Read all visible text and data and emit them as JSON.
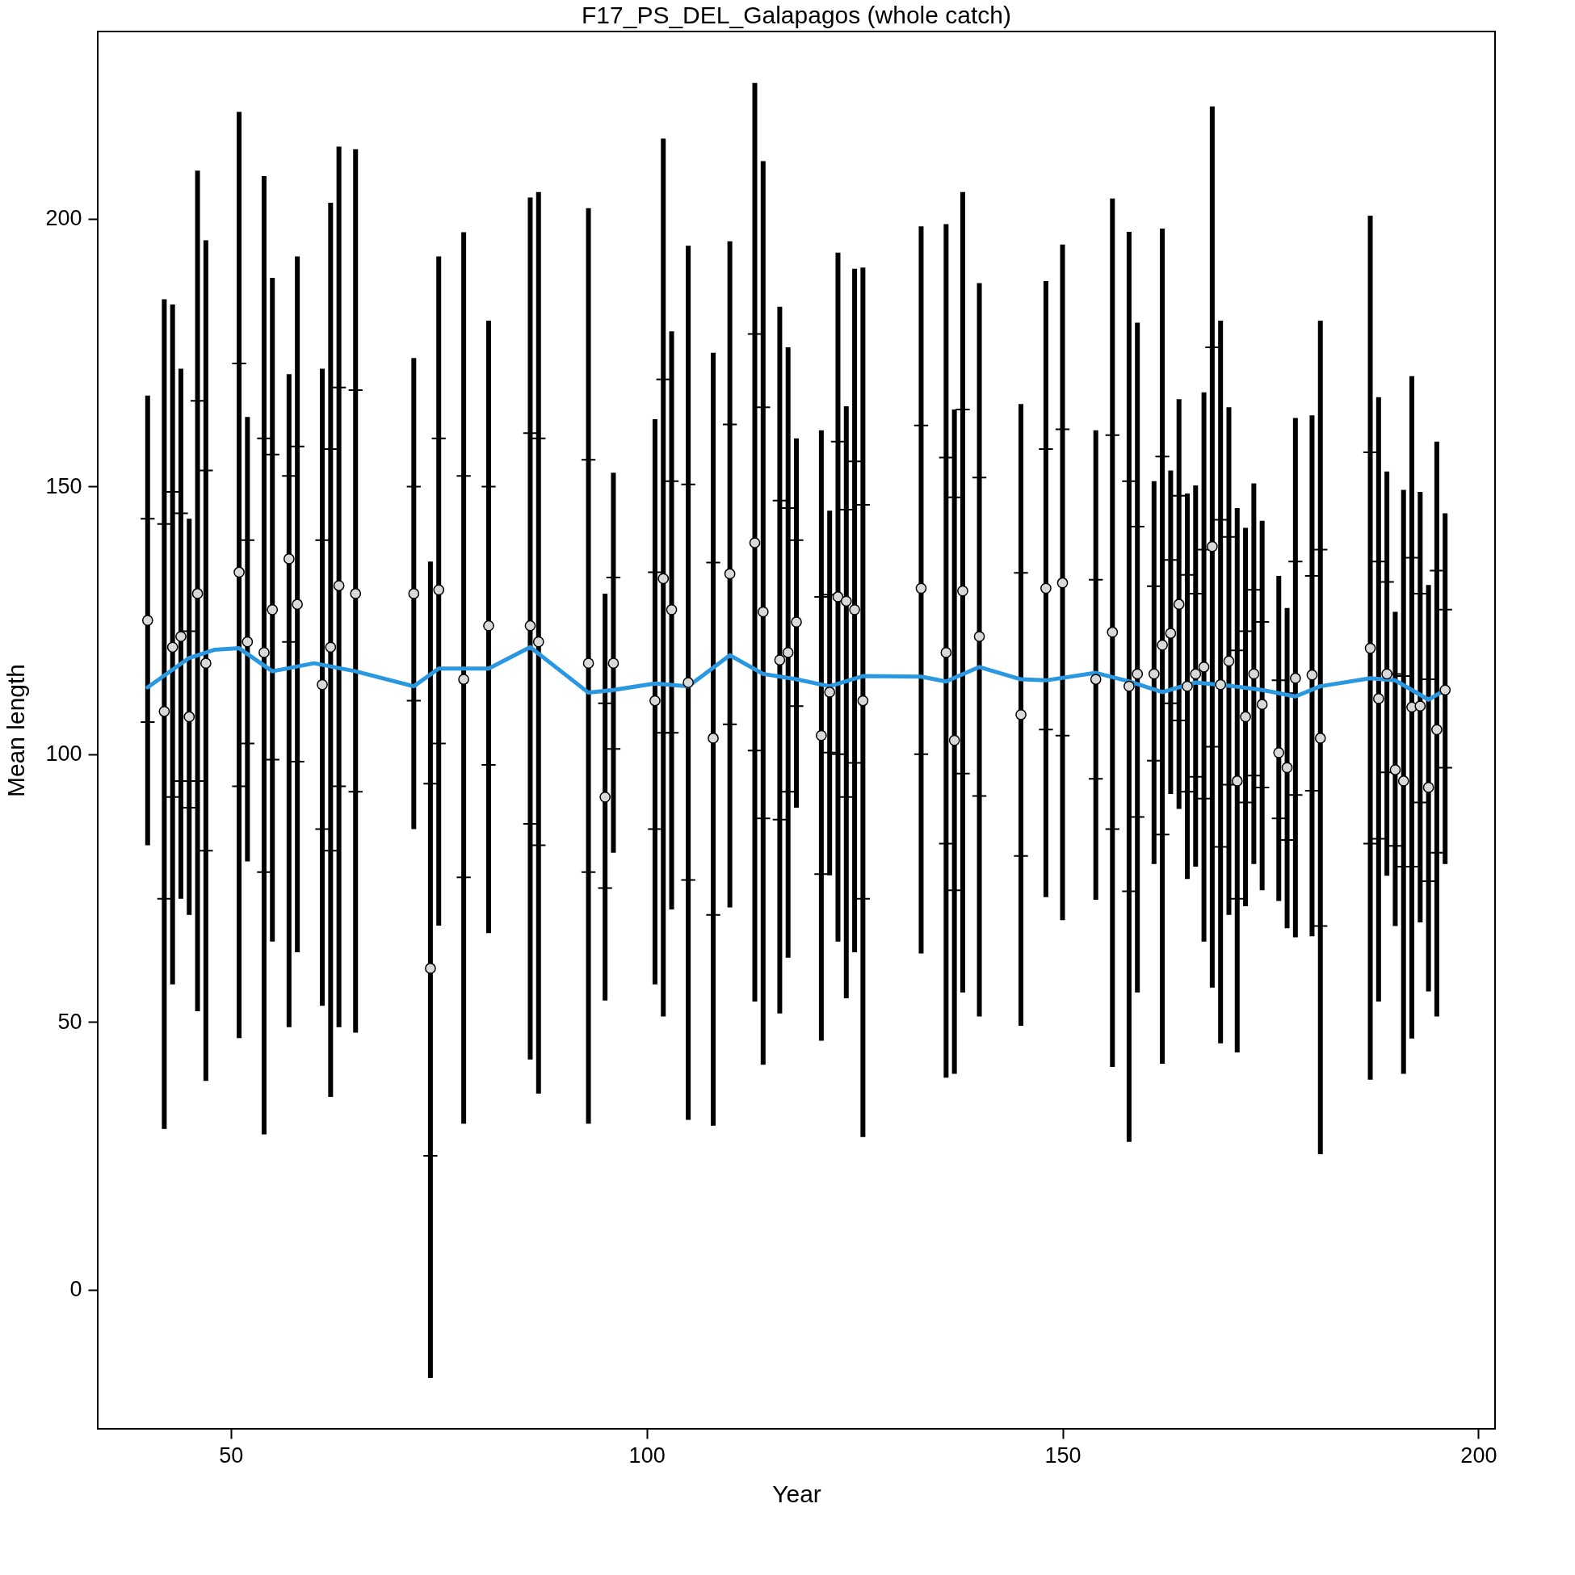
{
  "chart_data": {
    "type": "scatter",
    "title": "F17_PS_DEL_Galapagos (whole catch)",
    "xlabel": "Year",
    "ylabel": "Mean length",
    "xlim": [
      34,
      202
    ],
    "xticks": [
      50,
      100,
      150,
      200
    ],
    "ylim": [
      -26,
      235
    ],
    "yticks": [
      0,
      50,
      100,
      150,
      200
    ],
    "grid": false,
    "series": [
      {
        "marker": "circle",
        "color": "#d9d9d9",
        "x": [
          40,
          42,
          43,
          44,
          45,
          46,
          47,
          51,
          52,
          54,
          55,
          57,
          58,
          61,
          62,
          63,
          65,
          72,
          74,
          75,
          78,
          81,
          86,
          87,
          93,
          95,
          96,
          101,
          102,
          103,
          105,
          108,
          110,
          113,
          114,
          116,
          117,
          118,
          121,
          122,
          123,
          124,
          125,
          126,
          133,
          136,
          137,
          138,
          140,
          145,
          148,
          150,
          154,
          156,
          158,
          159,
          161,
          162,
          163,
          164,
          165,
          166,
          167,
          168,
          169,
          170,
          171,
          172,
          173,
          174,
          176,
          177,
          178,
          180,
          181,
          187,
          188,
          189,
          190,
          191,
          192,
          193,
          194,
          195,
          196
        ],
        "values": [
          125,
          108,
          120,
          122,
          107,
          130,
          117,
          134,
          121,
          119,
          127,
          136.5,
          128,
          113,
          120,
          131.5,
          130,
          130,
          60,
          130.7,
          114,
          124,
          124,
          121,
          117,
          92,
          117,
          110,
          132.8,
          127,
          113.4,
          103,
          133.7,
          139.5,
          126.6,
          117.6,
          119,
          124.7,
          103.5,
          111.6,
          129.4,
          128.6,
          127,
          110,
          131,
          119,
          102.6,
          130.5,
          122,
          107.4,
          131,
          132,
          114,
          122.8,
          112.7,
          115,
          115,
          120.4,
          122.6,
          128,
          112.7,
          115,
          116.3,
          138.8,
          113,
          117.4,
          95,
          107,
          115,
          109.3,
          100.3,
          97.5,
          114.2,
          114.8,
          103,
          119.8,
          110.4,
          115,
          97.1,
          95,
          108.8,
          109,
          93.8,
          104.6,
          112
        ],
        "errors": [
          [
            83,
            167
          ],
          [
            30,
            185
          ],
          [
            57,
            184
          ],
          [
            73,
            172
          ],
          [
            70,
            144
          ],
          [
            52,
            209
          ],
          [
            39,
            196
          ],
          [
            47,
            220
          ],
          [
            80,
            163
          ],
          [
            29,
            208
          ],
          [
            65,
            189
          ],
          [
            49,
            171
          ],
          [
            63,
            193
          ],
          [
            53,
            172
          ],
          [
            36,
            203
          ],
          [
            49,
            213.5
          ],
          [
            48,
            213
          ],
          [
            86,
            174
          ],
          [
            -16.5,
            136
          ],
          [
            68,
            193
          ],
          [
            31,
            197.5
          ],
          [
            66.6,
            181
          ],
          [
            43,
            204
          ],
          [
            36.6,
            205
          ],
          [
            31,
            202
          ],
          [
            54,
            130
          ],
          [
            81.6,
            152.6
          ],
          [
            57,
            162.6
          ],
          [
            51,
            215
          ],
          [
            71,
            179
          ],
          [
            31.7,
            195
          ],
          [
            30.6,
            175
          ],
          [
            71.4,
            195.8
          ],
          [
            53.8,
            225.4
          ],
          [
            42,
            210.8
          ],
          [
            51.6,
            183.6
          ],
          [
            62,
            176
          ],
          [
            90,
            159
          ],
          [
            46.5,
            160.5
          ],
          [
            77.4,
            145.5
          ],
          [
            65,
            193.7
          ],
          [
            54.4,
            165
          ],
          [
            63,
            190.7
          ],
          [
            28.5,
            190.9
          ],
          [
            62.8,
            198.6
          ],
          [
            39.6,
            199
          ],
          [
            40.3,
            164.4
          ],
          [
            55.5,
            205
          ],
          [
            51,
            188
          ],
          [
            49.3,
            165.4
          ],
          [
            73.3,
            188.4
          ],
          [
            69,
            195.2
          ],
          [
            72.8,
            160.5
          ],
          [
            41.6,
            203.8
          ],
          [
            27.6,
            197.6
          ],
          [
            55.5,
            180.6
          ],
          [
            79.5,
            151
          ],
          [
            42.2,
            198.2
          ],
          [
            92.6,
            153
          ],
          [
            89.8,
            166.3
          ],
          [
            76.7,
            148.7
          ],
          [
            79,
            150.2
          ],
          [
            65,
            167.6
          ],
          [
            56.4,
            221
          ],
          [
            46,
            181
          ],
          [
            70,
            164.8
          ],
          [
            44.3,
            146
          ],
          [
            71.6,
            142.3
          ],
          [
            79.5,
            150.6
          ],
          [
            74.6,
            143.6
          ],
          [
            72.6,
            133.3
          ],
          [
            67.5,
            127.3
          ],
          [
            65.8,
            162.8
          ],
          [
            66,
            163.3
          ],
          [
            25.3,
            181
          ],
          [
            39.2,
            200.6
          ],
          [
            53.8,
            166.7
          ],
          [
            77.3,
            152.8
          ],
          [
            67.9,
            126.6
          ],
          [
            40.3,
            149.4
          ],
          [
            46.9,
            170.6
          ],
          [
            68.6,
            149
          ],
          [
            55.7,
            131.6
          ],
          [
            51,
            158.4
          ],
          [
            79.5,
            145
          ]
        ]
      },
      {
        "marker": "cross",
        "color": "#000000",
        "x": [
          40,
          42,
          43,
          44,
          45,
          46,
          47,
          51,
          52,
          54,
          55,
          57,
          58,
          61,
          62,
          63,
          65,
          72,
          74,
          75,
          78,
          81,
          86,
          87,
          93,
          95,
          96,
          101,
          102,
          103,
          105,
          108,
          110,
          113,
          114,
          116,
          117,
          118,
          121,
          122,
          123,
          124,
          125,
          126,
          133,
          136,
          137,
          138,
          140,
          145,
          148,
          150,
          154,
          156,
          158,
          159,
          161,
          162,
          163,
          164,
          165,
          166,
          167,
          168,
          169,
          170,
          171,
          172,
          173,
          174,
          176,
          177,
          178,
          180,
          181,
          187,
          188,
          189,
          190,
          191,
          192,
          193,
          194,
          195,
          196
        ],
        "values": [
          144,
          143,
          149,
          145,
          123,
          166,
          153,
          173,
          140,
          159,
          156,
          152,
          157.5,
          140,
          157,
          168.5,
          168,
          150,
          94.5,
          159,
          152,
          150,
          160,
          159,
          155,
          109.5,
          133,
          134,
          170,
          151,
          150.4,
          135.8,
          161.6,
          178.5,
          164.8,
          147.4,
          146,
          140,
          129.4,
          129.8,
          158.4,
          145.7,
          154.7,
          146.6,
          161.4,
          155.4,
          148,
          164.4,
          151.7,
          133.9,
          157,
          160.7,
          132.6,
          159.6,
          151,
          142.5,
          131.4,
          155.6,
          136.3,
          148.3,
          133.5,
          130,
          138.2,
          176,
          143.8,
          140.6,
          119.4,
          123,
          130.7,
          124.7,
          113.8,
          111.4,
          136,
          133.3,
          138.2,
          156.4,
          136,
          132.2,
          115,
          114.6,
          136.7,
          130,
          114,
          134.3,
          127
        ]
      },
      {
        "marker": "cross",
        "color": "#000000",
        "x": [
          40,
          42,
          43,
          44,
          45,
          46,
          47,
          51,
          52,
          54,
          55,
          57,
          58,
          61,
          62,
          63,
          65,
          72,
          74,
          75,
          78,
          81,
          86,
          87,
          93,
          95,
          96,
          101,
          102,
          103,
          105,
          108,
          110,
          113,
          114,
          116,
          117,
          118,
          121,
          122,
          123,
          124,
          125,
          126,
          133,
          136,
          137,
          138,
          140,
          145,
          148,
          150,
          154,
          156,
          158,
          159,
          161,
          162,
          163,
          164,
          165,
          166,
          167,
          168,
          169,
          170,
          171,
          172,
          173,
          174,
          176,
          177,
          178,
          180,
          181,
          187,
          188,
          189,
          190,
          191,
          192,
          193,
          194,
          195,
          196
        ],
        "values": [
          106,
          73,
          92,
          95,
          90,
          95,
          82,
          94,
          102,
          78,
          99,
          121,
          98.6,
          86,
          82,
          94,
          93,
          110,
          25,
          102,
          77,
          98,
          87,
          83,
          78,
          75,
          101,
          86,
          104,
          104,
          76.5,
          70,
          105.6,
          100.7,
          88,
          87.8,
          93,
          109,
          77.6,
          100.3,
          100,
          92,
          98.4,
          73,
          100,
          83.3,
          74.6,
          96.4,
          92.2,
          81,
          104.6,
          103.5,
          95.4,
          86,
          74.4,
          88.3,
          98.8,
          85,
          109.5,
          106.3,
          93,
          95.8,
          91.7,
          101.4,
          82.7,
          94.3,
          73,
          91,
          96,
          93.8,
          88,
          84,
          92.4,
          93.2,
          67.9,
          83.3,
          84.2,
          96.6,
          82.9,
          79,
          79,
          91,
          76.3,
          81.6,
          97.5
        ]
      },
      {
        "type": "line",
        "color": "#2a98e0",
        "x": [
          40,
          45,
          48,
          51,
          55,
          60,
          65,
          72,
          75,
          81,
          86,
          93,
          96,
          101,
          105,
          110,
          114,
          118,
          122,
          126,
          133,
          136,
          140,
          145,
          148,
          154,
          158,
          162,
          166,
          170,
          174,
          178,
          181,
          187,
          190,
          192,
          194,
          196
        ],
        "values": [
          112.5,
          118,
          119.5,
          119.8,
          115.5,
          117,
          115.5,
          112.7,
          116,
          116,
          120,
          111.5,
          112,
          113.2,
          112.7,
          118.5,
          115,
          114,
          112.7,
          114.6,
          114.5,
          113.6,
          116.3,
          114,
          113.8,
          115.2,
          113.6,
          111.6,
          113.4,
          112.8,
          112,
          110.8,
          112.7,
          114.2,
          113.8,
          112,
          110.2,
          112
        ]
      }
    ]
  }
}
